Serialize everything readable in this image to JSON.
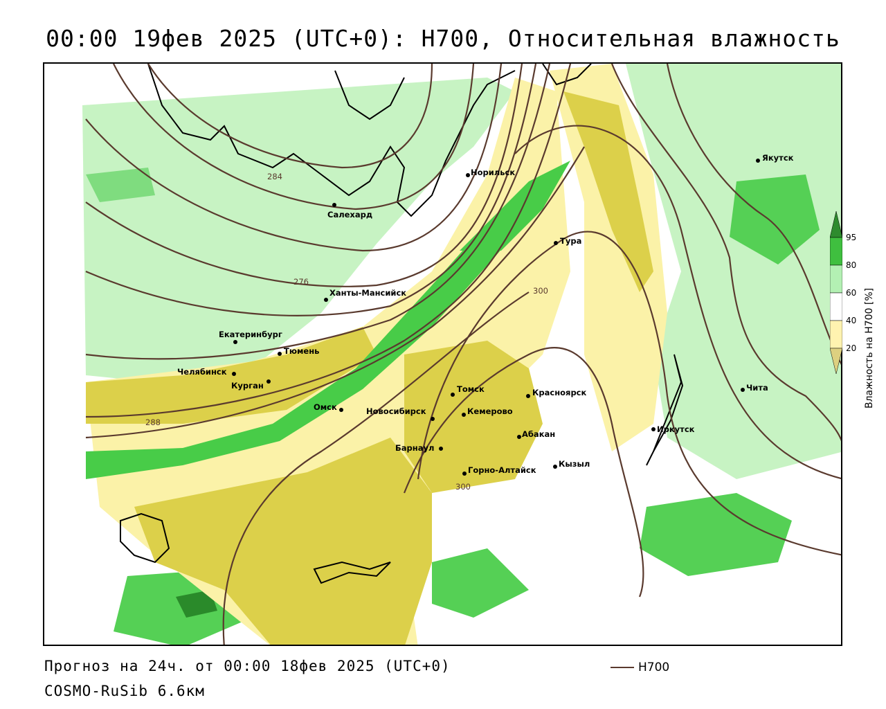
{
  "title": "00:00 19фев 2025 (UTC+0): H700, Относительная влажность",
  "footer": {
    "forecast": "Прогноз на 24ч. от 00:00 18фев 2025 (UTC+0)",
    "model": "COSMO-RuSib 6.6км",
    "legend_line_label": "H700"
  },
  "colorbar": {
    "title": "Влажность на H700 [%]",
    "ticks": [
      "95",
      "80",
      "60",
      "40",
      "20"
    ],
    "colors": [
      "#2e8b2e",
      "#3fbf3f",
      "#b3f0b3",
      "#ffffff",
      "#fff3b0",
      "#ddd080"
    ]
  },
  "contour_labels": [
    "284",
    "276",
    "300",
    "288",
    "300"
  ],
  "cities": [
    {
      "name": "Норильск"
    },
    {
      "name": "Салехард"
    },
    {
      "name": "Тура"
    },
    {
      "name": "Ханты-Мансийск"
    },
    {
      "name": "Екатеринбург"
    },
    {
      "name": "Тюмень"
    },
    {
      "name": "Челябинск"
    },
    {
      "name": "Курган"
    },
    {
      "name": "Омск"
    },
    {
      "name": "Новосибирск"
    },
    {
      "name": "Томск"
    },
    {
      "name": "Кемерово"
    },
    {
      "name": "Красноярск"
    },
    {
      "name": "Абакан"
    },
    {
      "name": "Барнаул"
    },
    {
      "name": "Горно-Алтайск"
    },
    {
      "name": "Кызыл"
    },
    {
      "name": "Иркутск"
    },
    {
      "name": "Якутск"
    },
    {
      "name": "Чита"
    }
  ],
  "colors": {
    "contour": "#5a3a2e",
    "dry_yellow": "#dcd04a",
    "light_yellow": "#fbf2a8",
    "light_green": "#b9f1b6",
    "green": "#48cc48",
    "dark_green": "#2a8a2a"
  }
}
